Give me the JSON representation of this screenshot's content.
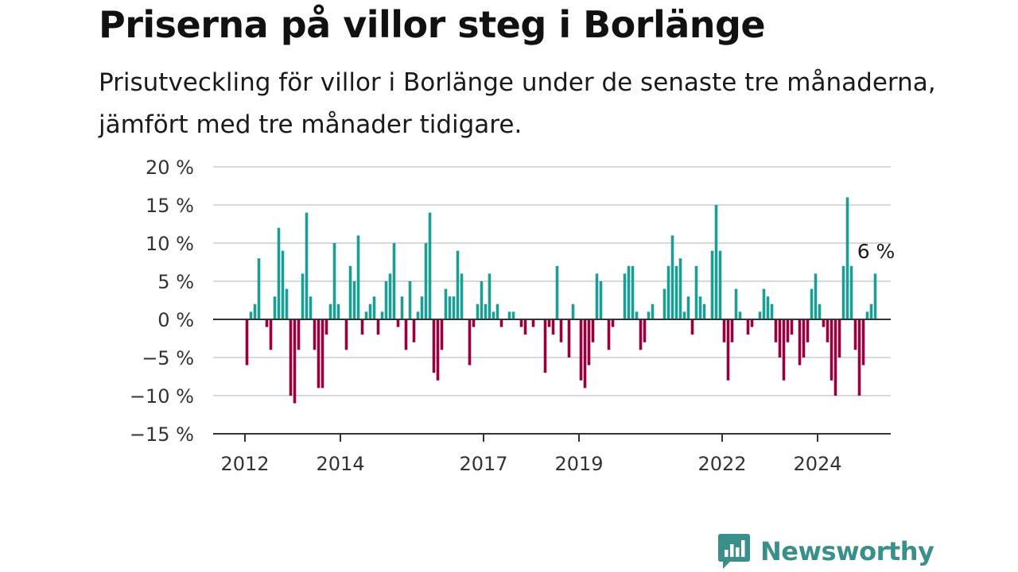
{
  "title": "Priserna på villor steg i Borlänge",
  "subtitle": "Prisutveckling för villor i Borlänge under de senaste tre månaderna, jämfört med tre månader tidigare.",
  "brand": {
    "name": "Newsworthy",
    "icon": "newsworthy-logo-icon"
  },
  "colors": {
    "positive": "#1a9e96",
    "negative": "#990040",
    "grid": "#d9d9d9",
    "axis": "#333333",
    "brand": "#3a8f8a"
  },
  "chart_data": {
    "type": "bar",
    "title": "Priserna på villor steg i Borlänge",
    "xlabel": "",
    "ylabel": "",
    "ylim": [
      -15,
      20
    ],
    "y_ticks": [
      20,
      15,
      10,
      5,
      0,
      -5,
      -10,
      -15
    ],
    "y_tick_labels": [
      "20 %",
      "15 %",
      "10 %",
      "5 %",
      "0 %",
      "−5 %",
      "−10 %",
      "−15 %"
    ],
    "x_tick_labels": [
      "2012",
      "2014",
      "2017",
      "2019",
      "2022",
      "2024"
    ],
    "x_tick_years": [
      2012,
      2014,
      2017,
      2019,
      2022,
      2024
    ],
    "x_start": "2012-01",
    "grid": true,
    "end_label": "6 %",
    "series": [
      {
        "values": [
          -6,
          1,
          2,
          8,
          0,
          -1,
          -4,
          3,
          12,
          9,
          4,
          -10,
          -11,
          -4,
          6,
          14,
          3,
          -4,
          -9,
          -9,
          -2,
          2,
          10,
          2,
          0,
          -4,
          7,
          5,
          11,
          -2,
          1,
          2,
          3,
          -2,
          1,
          5,
          6,
          10,
          -1,
          3,
          -4,
          5,
          -3,
          1,
          3,
          10,
          14,
          -7,
          -8,
          -4,
          4,
          3,
          3,
          9,
          6,
          0,
          -6,
          -1,
          2,
          5,
          2,
          6,
          1,
          2,
          -1,
          0,
          1,
          1,
          0,
          -1,
          -2,
          0,
          -1,
          0,
          0,
          -7,
          -1,
          -2,
          7,
          -3,
          0,
          -5,
          2,
          0,
          -8,
          -9,
          -6,
          -3,
          6,
          5,
          0,
          -4,
          -1,
          0,
          0,
          6,
          7,
          7,
          1,
          -4,
          -3,
          1,
          2,
          0,
          0,
          4,
          7,
          11,
          7,
          8,
          1,
          3,
          -2,
          7,
          3,
          2,
          0,
          9,
          15,
          9,
          -3,
          -8,
          -3,
          4,
          1,
          0,
          -2,
          -1,
          0,
          1,
          4,
          3,
          2,
          -3,
          -5,
          -8,
          -3,
          -2,
          0,
          -6,
          -5,
          -3,
          4,
          6,
          2,
          -1,
          -3,
          -8,
          -10,
          -5,
          7,
          16,
          7,
          -4,
          -10,
          -6,
          1,
          2,
          6
        ]
      }
    ]
  }
}
